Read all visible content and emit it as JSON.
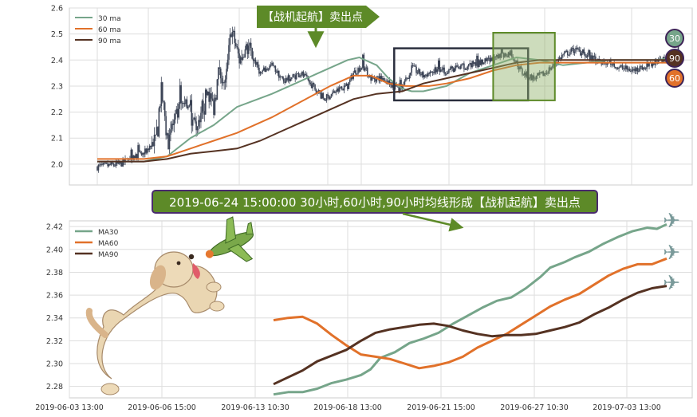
{
  "colors": {
    "ma30": "#76a58a",
    "ma60": "#e1712a",
    "ma90": "#553222",
    "candle": "#3c4456",
    "grid": "#dddddd",
    "banner_bg": "#5d8a28",
    "highlight_fill": "#90b26a",
    "highlight_stroke": "#5d8a28",
    "dark_box": "#2b2f3e",
    "caption_border": "#4a2b6e"
  },
  "banner": {
    "text": "【战机起航】卖出点"
  },
  "caption": {
    "text": "2019-06-24 15:00:00 30小时,60小时,90小时均线形成【战机起航】卖出点"
  },
  "badges": [
    {
      "label": "30",
      "color": "#76a58a"
    },
    {
      "label": "90",
      "color": "#553222"
    },
    {
      "label": "60",
      "color": "#e1712a"
    }
  ],
  "icons": {
    "dog": "dog-icon",
    "plane": "airplane-icon"
  },
  "chart_data": [
    {
      "type": "line",
      "subtype": "candlestick-with-moving-averages",
      "title": "",
      "ylim": [
        1.92,
        2.6
      ],
      "yticks": [
        2.0,
        2.1,
        2.2,
        2.3,
        2.4,
        2.5,
        2.6
      ],
      "grid": true,
      "legend_position": "top-left",
      "legend": [
        "30 ma",
        "60 ma",
        "90 ma"
      ],
      "n_bars": 500,
      "series": [
        {
          "name": "30 ma",
          "points": [
            [
              0,
              2.01
            ],
            [
              40,
              2.01
            ],
            [
              60,
              2.03
            ],
            [
              80,
              2.1
            ],
            [
              100,
              2.15
            ],
            [
              120,
              2.22
            ],
            [
              150,
              2.27
            ],
            [
              175,
              2.32
            ],
            [
              190,
              2.35
            ],
            [
              205,
              2.38
            ],
            [
              215,
              2.4
            ],
            [
              225,
              2.41
            ],
            [
              240,
              2.38
            ],
            [
              250,
              2.33
            ],
            [
              262,
              2.29
            ],
            [
              270,
              2.28
            ],
            [
              280,
              2.28
            ],
            [
              300,
              2.3
            ],
            [
              320,
              2.35
            ],
            [
              340,
              2.38
            ],
            [
              360,
              2.41
            ],
            [
              380,
              2.4
            ],
            [
              390,
              2.39
            ],
            [
              400,
              2.38
            ],
            [
              420,
              2.39
            ],
            [
              440,
              2.4
            ],
            [
              460,
              2.4
            ],
            [
              480,
              2.4
            ],
            [
              500,
              2.41
            ]
          ]
        },
        {
          "name": "60 ma",
          "points": [
            [
              0,
              2.02
            ],
            [
              40,
              2.02
            ],
            [
              60,
              2.03
            ],
            [
              80,
              2.06
            ],
            [
              100,
              2.09
            ],
            [
              120,
              2.12
            ],
            [
              150,
              2.18
            ],
            [
              175,
              2.24
            ],
            [
              200,
              2.3
            ],
            [
              220,
              2.34
            ],
            [
              235,
              2.34
            ],
            [
              250,
              2.31
            ],
            [
              265,
              2.3
            ],
            [
              285,
              2.3
            ],
            [
              300,
              2.31
            ],
            [
              320,
              2.33
            ],
            [
              340,
              2.36
            ],
            [
              360,
              2.38
            ],
            [
              380,
              2.39
            ],
            [
              400,
              2.39
            ],
            [
              420,
              2.39
            ],
            [
              440,
              2.39
            ],
            [
              460,
              2.39
            ],
            [
              480,
              2.39
            ],
            [
              500,
              2.39
            ]
          ]
        },
        {
          "name": "90 ma",
          "points": [
            [
              0,
              2.01
            ],
            [
              40,
              2.01
            ],
            [
              60,
              2.02
            ],
            [
              80,
              2.04
            ],
            [
              100,
              2.05
            ],
            [
              120,
              2.06
            ],
            [
              140,
              2.09
            ],
            [
              160,
              2.13
            ],
            [
              180,
              2.17
            ],
            [
              200,
              2.21
            ],
            [
              220,
              2.25
            ],
            [
              240,
              2.27
            ],
            [
              262,
              2.28
            ],
            [
              280,
              2.31
            ],
            [
              300,
              2.33
            ],
            [
              320,
              2.35
            ],
            [
              340,
              2.37
            ],
            [
              360,
              2.39
            ],
            [
              380,
              2.4
            ],
            [
              400,
              2.4
            ],
            [
              420,
              2.4
            ],
            [
              440,
              2.4
            ],
            [
              460,
              2.4
            ],
            [
              480,
              2.4
            ],
            [
              500,
              2.4
            ]
          ]
        }
      ],
      "price_path": [
        [
          0,
          1.99
        ],
        [
          20,
          2.0
        ],
        [
          30,
          2.03
        ],
        [
          40,
          2.04
        ],
        [
          50,
          2.1
        ],
        [
          55,
          2.28
        ],
        [
          60,
          2.12
        ],
        [
          65,
          2.15
        ],
        [
          75,
          2.25
        ],
        [
          80,
          2.18
        ],
        [
          85,
          2.15
        ],
        [
          95,
          2.28
        ],
        [
          100,
          2.22
        ],
        [
          105,
          2.38
        ],
        [
          110,
          2.3
        ],
        [
          115,
          2.52
        ],
        [
          122,
          2.4
        ],
        [
          130,
          2.45
        ],
        [
          140,
          2.35
        ],
        [
          150,
          2.38
        ],
        [
          160,
          2.32
        ],
        [
          175,
          2.35
        ],
        [
          185,
          2.3
        ],
        [
          195,
          2.25
        ],
        [
          205,
          2.28
        ],
        [
          215,
          2.3
        ],
        [
          220,
          2.35
        ],
        [
          228,
          2.38
        ],
        [
          235,
          2.33
        ],
        [
          245,
          2.33
        ],
        [
          255,
          2.3
        ],
        [
          262,
          2.29
        ],
        [
          270,
          2.37
        ],
        [
          280,
          2.34
        ],
        [
          290,
          2.36
        ],
        [
          300,
          2.36
        ],
        [
          320,
          2.38
        ],
        [
          340,
          2.4
        ],
        [
          355,
          2.43
        ],
        [
          365,
          2.35
        ],
        [
          375,
          2.33
        ],
        [
          385,
          2.35
        ],
        [
          400,
          2.42
        ],
        [
          410,
          2.44
        ],
        [
          420,
          2.42
        ],
        [
          440,
          2.38
        ],
        [
          460,
          2.36
        ],
        [
          480,
          2.39
        ],
        [
          490,
          2.41
        ],
        [
          500,
          2.41
        ]
      ],
      "annotation_boxes": [
        {
          "name": "dark-box",
          "x": [
            255,
            370
          ],
          "y": [
            2.245,
            2.445
          ]
        },
        {
          "name": "highlight-box",
          "x": [
            340,
            393
          ],
          "y": [
            2.245,
            2.505
          ]
        }
      ]
    },
    {
      "type": "line",
      "title": "",
      "ylim": [
        2.27,
        2.425
      ],
      "yticks": [
        2.28,
        2.3,
        2.32,
        2.34,
        2.36,
        2.38,
        2.4,
        2.42
      ],
      "grid": true,
      "legend_position": "top-left",
      "legend": [
        "MA30",
        "MA60",
        "MA90"
      ],
      "x_ticklabels": [
        "2019-06-03 13:00",
        "2019-06-06 15:00",
        "2019-06-13 10:30",
        "2019-06-18 13:00",
        "2019-06-21 15:00",
        "2019-06-27 10:30",
        "2019-07-03 13:00"
      ],
      "x_range": [
        0,
        90
      ],
      "series": [
        {
          "name": "MA30",
          "points": [
            [
              0,
              2.273
            ],
            [
              3,
              2.275
            ],
            [
              6,
              2.275
            ],
            [
              9,
              2.278
            ],
            [
              12,
              2.283
            ],
            [
              15,
              2.286
            ],
            [
              18,
              2.29
            ],
            [
              20,
              2.295
            ],
            [
              22,
              2.305
            ],
            [
              25,
              2.31
            ],
            [
              28,
              2.318
            ],
            [
              31,
              2.322
            ],
            [
              34,
              2.327
            ],
            [
              37,
              2.335
            ],
            [
              40,
              2.342
            ],
            [
              43,
              2.349
            ],
            [
              46,
              2.355
            ],
            [
              49,
              2.358
            ],
            [
              52,
              2.366
            ],
            [
              55,
              2.376
            ],
            [
              57,
              2.384
            ],
            [
              60,
              2.389
            ],
            [
              62,
              2.393
            ],
            [
              65,
              2.398
            ],
            [
              68,
              2.405
            ],
            [
              71,
              2.411
            ],
            [
              74,
              2.416
            ],
            [
              77,
              2.419
            ],
            [
              79,
              2.418
            ],
            [
              81,
              2.422
            ]
          ]
        },
        {
          "name": "MA60",
          "points": [
            [
              0,
              2.338
            ],
            [
              3,
              2.34
            ],
            [
              6,
              2.341
            ],
            [
              9,
              2.335
            ],
            [
              12,
              2.325
            ],
            [
              15,
              2.316
            ],
            [
              18,
              2.308
            ],
            [
              21,
              2.306
            ],
            [
              24,
              2.304
            ],
            [
              27,
              2.3
            ],
            [
              30,
              2.296
            ],
            [
              33,
              2.298
            ],
            [
              36,
              2.301
            ],
            [
              39,
              2.306
            ],
            [
              42,
              2.314
            ],
            [
              45,
              2.32
            ],
            [
              48,
              2.326
            ],
            [
              51,
              2.334
            ],
            [
              54,
              2.342
            ],
            [
              57,
              2.35
            ],
            [
              60,
              2.356
            ],
            [
              63,
              2.361
            ],
            [
              66,
              2.369
            ],
            [
              69,
              2.377
            ],
            [
              72,
              2.383
            ],
            [
              75,
              2.387
            ],
            [
              78,
              2.387
            ],
            [
              81,
              2.392
            ]
          ]
        },
        {
          "name": "MA90",
          "points": [
            [
              0,
              2.282
            ],
            [
              3,
              2.288
            ],
            [
              6,
              2.294
            ],
            [
              9,
              2.302
            ],
            [
              12,
              2.307
            ],
            [
              15,
              2.312
            ],
            [
              18,
              2.32
            ],
            [
              21,
              2.327
            ],
            [
              24,
              2.33
            ],
            [
              27,
              2.332
            ],
            [
              30,
              2.334
            ],
            [
              33,
              2.335
            ],
            [
              36,
              2.333
            ],
            [
              39,
              2.329
            ],
            [
              42,
              2.326
            ],
            [
              45,
              2.324
            ],
            [
              48,
              2.325
            ],
            [
              51,
              2.325
            ],
            [
              54,
              2.326
            ],
            [
              57,
              2.329
            ],
            [
              60,
              2.332
            ],
            [
              63,
              2.336
            ],
            [
              66,
              2.343
            ],
            [
              69,
              2.349
            ],
            [
              72,
              2.356
            ],
            [
              75,
              2.362
            ],
            [
              78,
              2.366
            ],
            [
              81,
              2.368
            ]
          ]
        }
      ]
    }
  ]
}
